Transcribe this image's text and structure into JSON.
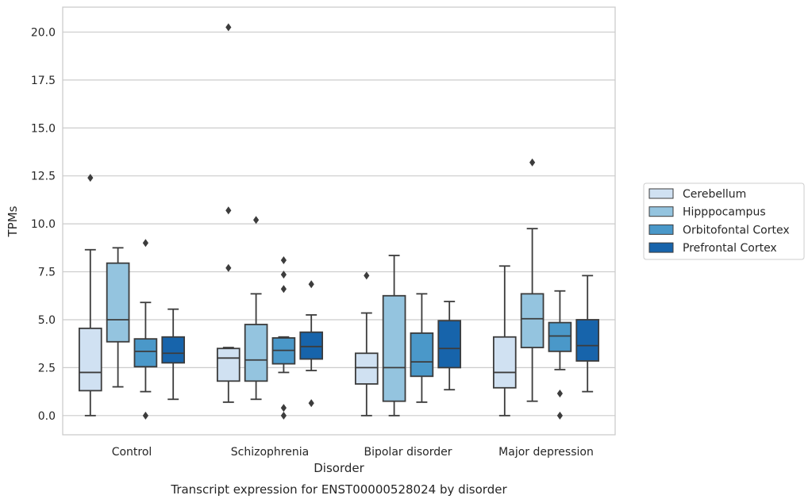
{
  "chart_data": {
    "type": "boxplot",
    "caption": "Transcript expression for ENST00000528024 by disorder",
    "xlabel": "Disorder",
    "ylabel": "TPMs",
    "ylim": [
      -1.0,
      21.3
    ],
    "yticks": [
      "0.0",
      "2.5",
      "5.0",
      "7.5",
      "10.0",
      "12.5",
      "15.0",
      "17.5",
      "20.0"
    ],
    "grid": "horizontal",
    "legend_placement": "right-center",
    "categories": [
      "Control",
      "Schizophrenia",
      "Bipolar disorder",
      "Major depression"
    ],
    "series": [
      {
        "name": "Cerebellum",
        "color": "#d0e1f2",
        "boxes": [
          {
            "whislo": 0.0,
            "q1": 1.3,
            "med": 2.25,
            "q3": 4.55,
            "whishi": 8.65,
            "fliers": [
              12.4
            ]
          },
          {
            "whislo": 0.7,
            "q1": 1.8,
            "med": 3.0,
            "q3": 3.5,
            "whishi": 3.55,
            "fliers": [
              7.7,
              10.7,
              20.25
            ]
          },
          {
            "whislo": 0.0,
            "q1": 1.65,
            "med": 2.5,
            "q3": 3.25,
            "whishi": 5.35,
            "fliers": [
              7.3
            ]
          },
          {
            "whislo": 0.0,
            "q1": 1.45,
            "med": 2.25,
            "q3": 4.1,
            "whishi": 7.8,
            "fliers": []
          }
        ]
      },
      {
        "name": "Hipppocampus",
        "color": "#94c4df",
        "boxes": [
          {
            "whislo": 1.5,
            "q1": 3.85,
            "med": 5.0,
            "q3": 7.95,
            "whishi": 8.75,
            "fliers": []
          },
          {
            "whislo": 0.85,
            "q1": 1.8,
            "med": 2.9,
            "q3": 4.75,
            "whishi": 6.35,
            "fliers": [
              10.2
            ]
          },
          {
            "whislo": 0.0,
            "q1": 0.75,
            "med": 2.5,
            "q3": 6.25,
            "whishi": 8.35,
            "fliers": []
          },
          {
            "whislo": 0.75,
            "q1": 3.55,
            "med": 5.05,
            "q3": 6.35,
            "whishi": 9.75,
            "fliers": [
              13.2
            ]
          }
        ]
      },
      {
        "name": "Orbitofontal Cortex",
        "color": "#4a98c9",
        "boxes": [
          {
            "whislo": 1.25,
            "q1": 2.55,
            "med": 3.35,
            "q3": 4.0,
            "whishi": 5.9,
            "fliers": [
              9.0,
              0.0
            ]
          },
          {
            "whislo": 2.25,
            "q1": 2.7,
            "med": 3.4,
            "q3": 4.05,
            "whishi": 4.1,
            "fliers": [
              8.1,
              7.35,
              6.6,
              0.4,
              0.0
            ]
          },
          {
            "whislo": 0.7,
            "q1": 2.05,
            "med": 2.8,
            "q3": 4.3,
            "whishi": 6.35,
            "fliers": []
          },
          {
            "whislo": 2.4,
            "q1": 3.35,
            "med": 4.15,
            "q3": 4.85,
            "whishi": 6.5,
            "fliers": [
              1.15,
              0.0
            ]
          }
        ]
      },
      {
        "name": "Prefrontal Cortex",
        "color": "#1764ab",
        "boxes": [
          {
            "whislo": 0.85,
            "q1": 2.75,
            "med": 3.25,
            "q3": 4.1,
            "whishi": 5.55,
            "fliers": []
          },
          {
            "whislo": 2.35,
            "q1": 2.95,
            "med": 3.6,
            "q3": 4.35,
            "whishi": 5.25,
            "fliers": [
              6.85,
              0.65
            ]
          },
          {
            "whislo": 1.35,
            "q1": 2.5,
            "med": 3.5,
            "q3": 4.95,
            "whishi": 5.95,
            "fliers": []
          },
          {
            "whislo": 1.25,
            "q1": 2.85,
            "med": 3.65,
            "q3": 5.0,
            "whishi": 7.3,
            "fliers": []
          }
        ]
      }
    ]
  }
}
